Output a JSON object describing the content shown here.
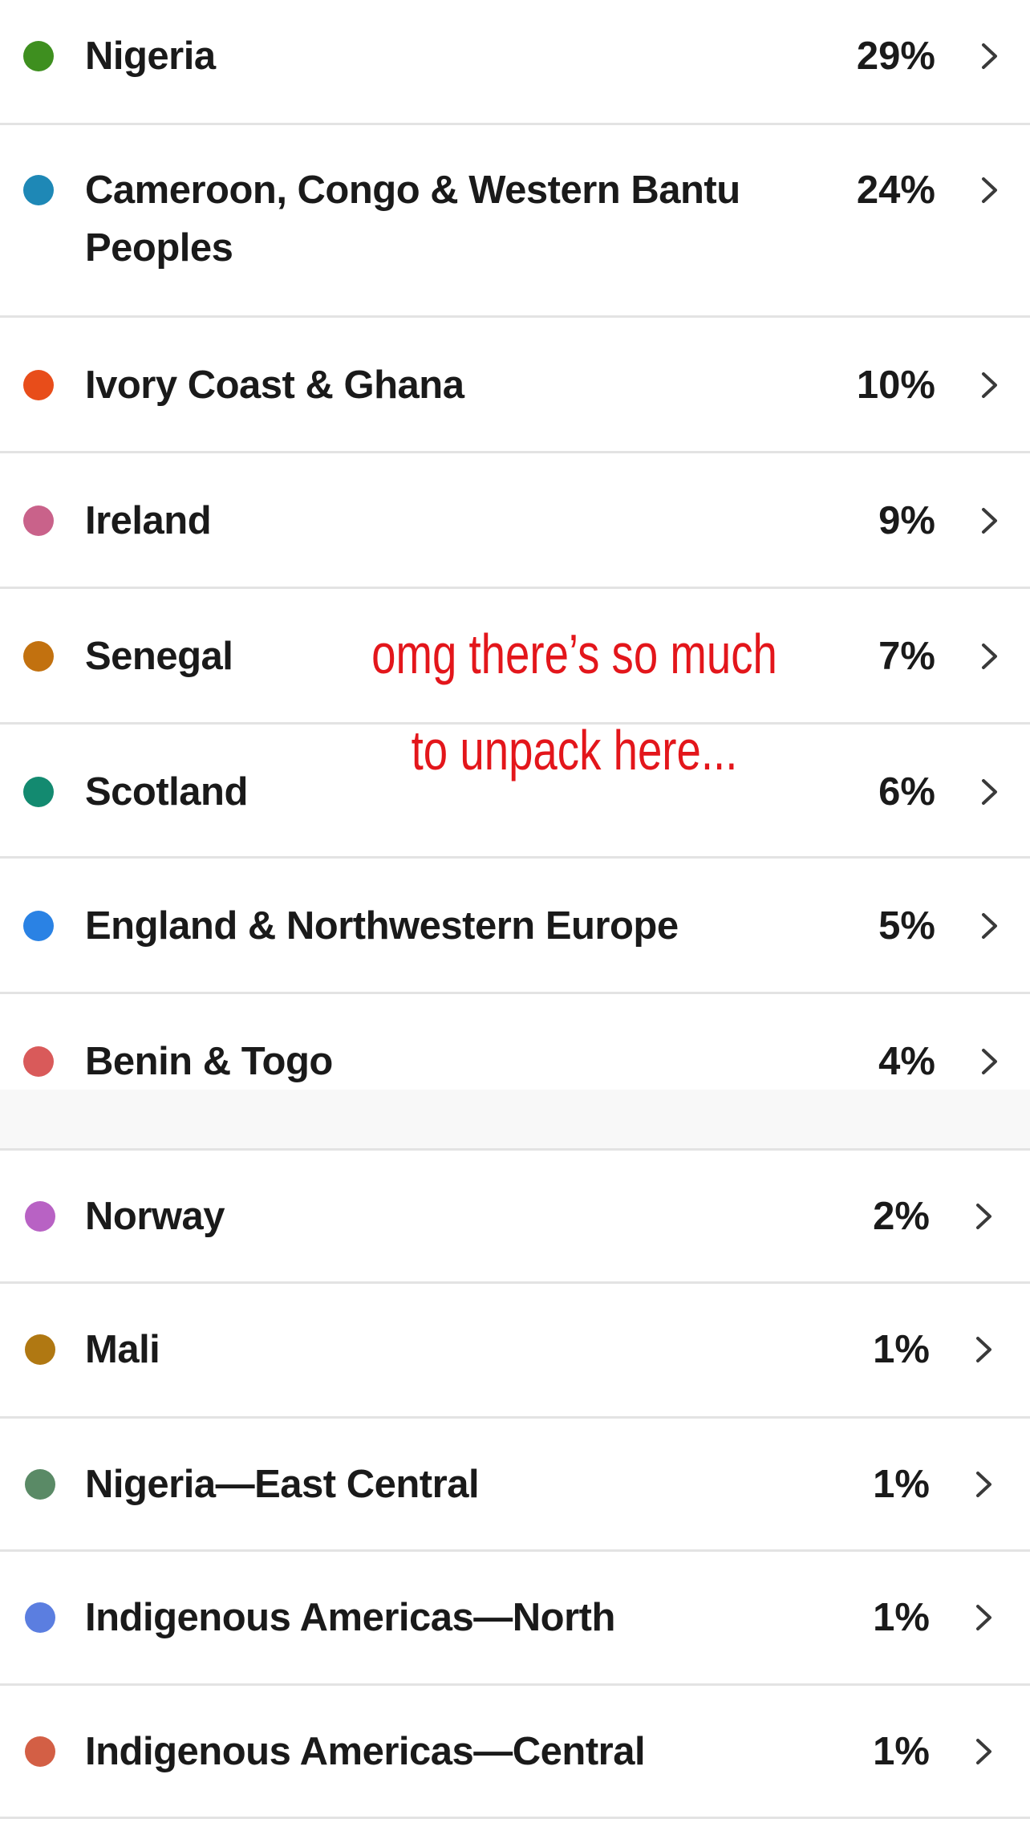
{
  "ancestry_list": [
    {
      "name": "Nigeria",
      "percent": "29%",
      "color": "#3e8f1f"
    },
    {
      "name": "Cameroon, Congo & Western Bantu Peoples",
      "percent": "24%",
      "color": "#1e88b6"
    },
    {
      "name": "Ivory Coast & Ghana",
      "percent": "10%",
      "color": "#e84d1a"
    },
    {
      "name": "Ireland",
      "percent": "9%",
      "color": "#c9628a"
    },
    {
      "name": "Senegal",
      "percent": "7%",
      "color": "#c2710f"
    },
    {
      "name": "Scotland",
      "percent": "6%",
      "color": "#138a70"
    },
    {
      "name": "England & Northwestern Europe",
      "percent": "5%",
      "color": "#2a82e4"
    },
    {
      "name": "Benin & Togo",
      "percent": "4%",
      "color": "#d95a5a"
    },
    {
      "name": "Norway",
      "percent": "2%",
      "color": "#b862c4"
    },
    {
      "name": "Mali",
      "percent": "1%",
      "color": "#b07812"
    },
    {
      "name": "Nigeria—East Central",
      "percent": "1%",
      "color": "#5a8a66"
    },
    {
      "name": "Indigenous Americas—North",
      "percent": "1%",
      "color": "#5b7ee0"
    },
    {
      "name": "Indigenous Americas—Central",
      "percent": "1%",
      "color": "#d35f45"
    }
  ],
  "annotation": {
    "line1": "omg there’s so much",
    "line2": "to unpack here...",
    "color": "#e3161b"
  },
  "icons": {
    "row_chevron": "chevron-right-icon",
    "region_dot": "color-dot-icon"
  }
}
